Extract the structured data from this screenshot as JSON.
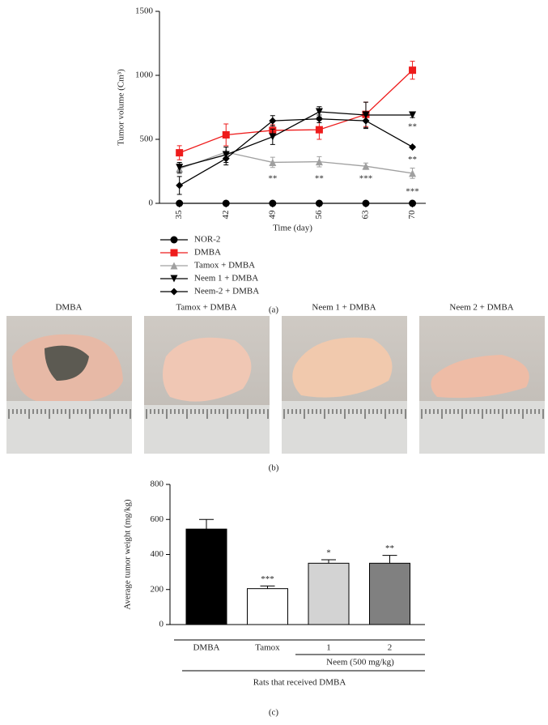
{
  "chart_data": [
    {
      "type": "line",
      "xlabel": "Time (day)",
      "ylabel": "Tumor volume (Cm³)",
      "x": [
        35,
        42,
        49,
        56,
        63,
        70
      ],
      "xlim": [
        32,
        72
      ],
      "xticks": [
        35,
        42,
        49,
        56,
        63,
        70
      ],
      "ylim": [
        0,
        1500
      ],
      "yticks": [
        0,
        500,
        1000,
        1500
      ],
      "legend": "bottom-left",
      "series": [
        {
          "name": "NOR-2",
          "color": "#000000",
          "marker": "circle",
          "values": [
            0,
            0,
            0,
            0,
            0,
            0
          ]
        },
        {
          "name": "DMBA",
          "color": "#ee1c1c",
          "marker": "square",
          "values": [
            395,
            535,
            570,
            575,
            695,
            1040
          ],
          "errors": [
            55,
            85,
            45,
            75,
            95,
            70
          ]
        },
        {
          "name": "Tamox + DMBA",
          "color": "#a0a0a0",
          "marker": "triangle",
          "values": [
            270,
            400,
            320,
            325,
            290,
            235
          ],
          "errors": [
            40,
            40,
            40,
            40,
            25,
            40
          ]
        },
        {
          "name": "Neem 1 + DMBA",
          "color": "#000000",
          "marker": "triangle-down",
          "values": [
            280,
            380,
            520,
            715,
            690,
            690
          ],
          "errors": [
            40,
            60,
            60,
            40,
            100,
            20
          ]
        },
        {
          "name": "Neem-2 + DMBA",
          "color": "#000000",
          "marker": "diamond",
          "values": [
            140,
            350,
            645,
            660,
            645,
            440
          ],
          "errors": [
            70,
            50,
            40,
            30,
            60,
            10
          ]
        }
      ],
      "annotations": [
        {
          "x": 49,
          "y": 190,
          "text": "**"
        },
        {
          "x": 56,
          "y": 190,
          "text": "**"
        },
        {
          "x": 63,
          "y": 190,
          "text": "***"
        },
        {
          "x": 70,
          "y": 595,
          "text": "**"
        },
        {
          "x": 70,
          "y": 340,
          "text": "**"
        },
        {
          "x": 70,
          "y": 90,
          "text": "***"
        }
      ],
      "caption": "(a)"
    },
    {
      "type": "bar",
      "ylabel": "Average tumor weight (mg/kg)",
      "categories": [
        "DMBA",
        "Tamox",
        "1",
        "2"
      ],
      "values": [
        545,
        205,
        350,
        350
      ],
      "errors": [
        55,
        15,
        20,
        45
      ],
      "colors": [
        "#000000",
        "#ffffff",
        "#d3d3d3",
        "#808080"
      ],
      "ylim": [
        0,
        800
      ],
      "yticks": [
        0,
        200,
        400,
        600,
        800
      ],
      "annotations": [
        {
          "index": 1,
          "text": "***"
        },
        {
          "index": 2,
          "text": "*"
        },
        {
          "index": 3,
          "text": "**"
        }
      ],
      "group_label": "Neem (500 mg/kg)",
      "outer_label": "Rats that received DMBA",
      "caption": "(c)"
    }
  ],
  "photos": {
    "labels": [
      "DMBA",
      "Tamox + DMBA",
      "Neem 1 + DMBA",
      "Neem 2 + DMBA"
    ],
    "caption": "(b)"
  }
}
